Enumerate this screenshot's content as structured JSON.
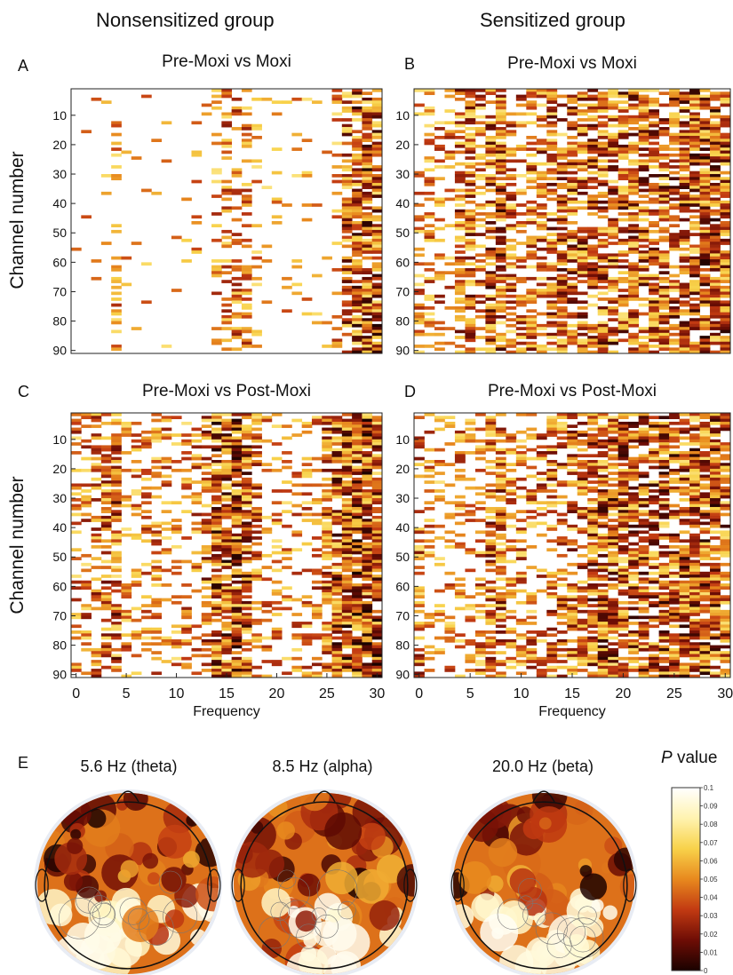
{
  "groups": {
    "nonsensitized": "Nonsensitized group",
    "sensitized": "Sensitized group"
  },
  "colors": {
    "white": "#ffffff",
    "light_yellow": "#fff3b0",
    "yellow": "#f8d24a",
    "orange": "#e8891e",
    "red": "#c23a12",
    "dark_red": "#6e0d05",
    "black": "#1a0200"
  },
  "chart_data": [
    {
      "type": "heatmap",
      "panel": "A",
      "title": "Pre-Moxi vs Moxi",
      "ylabel": "Channel number",
      "xlim": [
        0,
        31
      ],
      "ylim": [
        1,
        91
      ],
      "yticks": [
        10,
        20,
        30,
        40,
        50,
        60,
        70,
        80,
        90
      ],
      "intensity_profile": [
        0.03,
        0.03,
        0.05,
        0.05,
        0.35,
        0.04,
        0.05,
        0.07,
        0.05,
        0.04,
        0.03,
        0.05,
        0.08,
        0.05,
        0.25,
        0.35,
        0.35,
        0.3,
        0.15,
        0.06,
        0.06,
        0.05,
        0.07,
        0.08,
        0.06,
        0.06,
        0.2,
        0.65,
        0.75,
        0.8,
        0.8
      ]
    },
    {
      "type": "heatmap",
      "panel": "B",
      "title": "Pre-Moxi vs Moxi",
      "xlim": [
        0,
        31
      ],
      "ylim": [
        1,
        91
      ],
      "yticks": [
        10,
        20,
        30,
        40,
        50,
        60,
        70,
        80,
        90
      ],
      "intensity_profile": [
        0.25,
        0.3,
        0.35,
        0.3,
        0.55,
        0.65,
        0.45,
        0.7,
        0.75,
        0.5,
        0.45,
        0.5,
        0.55,
        0.6,
        0.65,
        0.65,
        0.6,
        0.7,
        0.65,
        0.7,
        0.65,
        0.7,
        0.7,
        0.65,
        0.7,
        0.7,
        0.75,
        0.75,
        0.8,
        0.8,
        0.75
      ]
    },
    {
      "type": "heatmap",
      "panel": "C",
      "title": "Pre-Moxi vs Post-Moxi",
      "ylabel": "Channel number",
      "xlabel": "Frequency",
      "xlim": [
        0,
        31
      ],
      "ylim": [
        1,
        91
      ],
      "xticks": [
        0,
        5,
        10,
        15,
        20,
        25,
        30
      ],
      "yticks": [
        10,
        20,
        30,
        40,
        50,
        60,
        70,
        80,
        90
      ],
      "intensity_profile": [
        0.35,
        0.35,
        0.45,
        0.5,
        0.65,
        0.3,
        0.25,
        0.3,
        0.35,
        0.3,
        0.25,
        0.3,
        0.35,
        0.55,
        0.8,
        0.85,
        0.8,
        0.7,
        0.45,
        0.25,
        0.2,
        0.2,
        0.25,
        0.3,
        0.35,
        0.55,
        0.8,
        0.9,
        0.9,
        0.9,
        0.85
      ]
    },
    {
      "type": "heatmap",
      "panel": "D",
      "title": "Pre-Moxi vs Post-Moxi",
      "xlabel": "Frequency",
      "xlim": [
        0,
        31
      ],
      "ylim": [
        1,
        91
      ],
      "xticks": [
        0,
        5,
        10,
        15,
        20,
        25,
        30
      ],
      "yticks": [
        10,
        20,
        30,
        40,
        50,
        60,
        70,
        80,
        90
      ],
      "intensity_profile": [
        0.45,
        0.3,
        0.25,
        0.25,
        0.3,
        0.3,
        0.35,
        0.55,
        0.6,
        0.4,
        0.35,
        0.4,
        0.45,
        0.5,
        0.5,
        0.55,
        0.6,
        0.7,
        0.75,
        0.75,
        0.75,
        0.75,
        0.75,
        0.7,
        0.75,
        0.75,
        0.75,
        0.8,
        0.8,
        0.8,
        0.75
      ]
    },
    {
      "type": "heatmap",
      "panel": "E",
      "subtype": "topographic-map",
      "maps": [
        {
          "title": "5.6 Hz (theta)"
        },
        {
          "title": "8.5 Hz (alpha)"
        },
        {
          "title": "20.0 Hz (beta)"
        }
      ],
      "colorbar": {
        "title_italic": "P",
        "title_rest": " value",
        "ticks": [
          "0.1",
          "0.09",
          "0.08",
          "0.07",
          "0.06",
          "0.05",
          "0.04",
          "0.03",
          "0.02",
          "0.01",
          "0"
        ]
      }
    }
  ]
}
